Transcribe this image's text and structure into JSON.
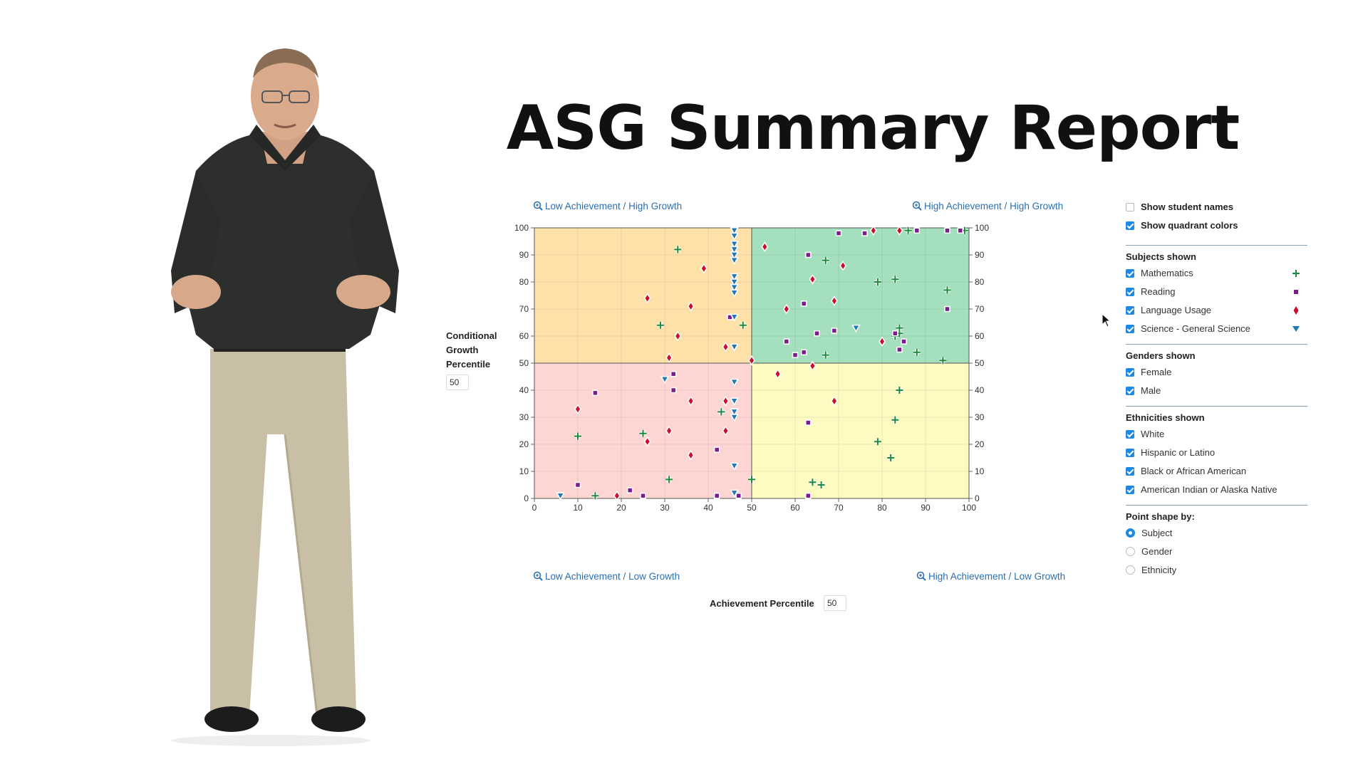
{
  "title": "ASG Summary Report",
  "quadrant_links": {
    "top_left": "Low Achievement / High Growth",
    "top_right": "High Achievement / High Growth",
    "bottom_left": "Low Achievement / Low Growth",
    "bottom_right": "High Achievement / Low Growth"
  },
  "y_axis": {
    "label_line1": "Conditional",
    "label_line2": "Growth",
    "label_line3": "Percentile",
    "threshold": "50"
  },
  "x_axis": {
    "label": "Achievement Percentile",
    "threshold": "50"
  },
  "panel": {
    "show_names": {
      "label": "Show student names",
      "checked": false
    },
    "show_colors": {
      "label": "Show quadrant colors",
      "checked": true
    },
    "subjects": {
      "title": "Subjects shown",
      "items": [
        {
          "label": "Mathematics",
          "checked": true
        },
        {
          "label": "Reading",
          "checked": true
        },
        {
          "label": "Language Usage",
          "checked": true
        },
        {
          "label": "Science - General Science",
          "checked": true
        }
      ]
    },
    "genders": {
      "title": "Genders shown",
      "items": [
        {
          "label": "Female",
          "checked": true
        },
        {
          "label": "Male",
          "checked": true
        }
      ]
    },
    "ethnicities": {
      "title": "Ethnicities shown",
      "items": [
        {
          "label": "White",
          "checked": true
        },
        {
          "label": "Hispanic or Latino",
          "checked": true
        },
        {
          "label": "Black or African American",
          "checked": true
        },
        {
          "label": "American Indian or Alaska Native",
          "checked": true
        }
      ]
    },
    "point_shape": {
      "title": "Point shape by:",
      "options": [
        {
          "label": "Subject",
          "selected": true
        },
        {
          "label": "Gender",
          "selected": false
        },
        {
          "label": "Ethnicity",
          "selected": false
        }
      ]
    }
  },
  "colors": {
    "quadrant_top_left": "#fde1a8",
    "quadrant_top_right": "#a4e0bd",
    "quadrant_bottom_left": "#fdd5d3",
    "quadrant_bottom_right": "#fdfbc2",
    "mathematics": "#1e8a3e",
    "reading": "#7b1c8c",
    "language_usage": "#c8102e",
    "science": "#1f78b4",
    "link": "#2a6fb0"
  },
  "icons": {
    "zoom": "magnifier-plus-icon",
    "mathematics": "plus-marker",
    "reading": "square-marker",
    "language_usage": "diamond-marker",
    "science": "triangle-down-marker"
  },
  "chart_data": {
    "type": "scatter",
    "xlim": [
      0,
      100
    ],
    "ylim": [
      0,
      100
    ],
    "x_ticks": [
      0,
      10,
      20,
      30,
      40,
      50,
      60,
      70,
      80,
      90,
      100
    ],
    "y_ticks": [
      0,
      10,
      20,
      30,
      40,
      50,
      60,
      70,
      80,
      90,
      100
    ],
    "grid": true,
    "threshold_x": 50,
    "threshold_y": 50,
    "series": [
      {
        "name": "Mathematics",
        "marker": "plus",
        "points": [
          [
            33,
            92
          ],
          [
            29,
            64
          ],
          [
            48,
            64
          ],
          [
            10,
            23
          ],
          [
            25,
            24
          ],
          [
            14,
            1
          ],
          [
            31,
            7
          ],
          [
            43,
            32
          ],
          [
            50,
            7
          ],
          [
            67,
            88
          ],
          [
            79,
            80
          ],
          [
            83,
            81
          ],
          [
            95,
            77
          ],
          [
            84,
            63
          ],
          [
            84,
            61
          ],
          [
            83,
            60
          ],
          [
            67,
            53
          ],
          [
            88,
            54
          ],
          [
            94,
            51
          ],
          [
            86,
            99
          ],
          [
            99,
            99
          ],
          [
            84,
            40
          ],
          [
            83,
            29
          ],
          [
            79,
            21
          ],
          [
            82,
            15
          ],
          [
            64,
            6
          ],
          [
            66,
            5
          ]
        ]
      },
      {
        "name": "Reading",
        "marker": "square",
        "points": [
          [
            45,
            67
          ],
          [
            14,
            39
          ],
          [
            32,
            46
          ],
          [
            32,
            40
          ],
          [
            10,
            5
          ],
          [
            22,
            3
          ],
          [
            25,
            1
          ],
          [
            42,
            18
          ],
          [
            42,
            1
          ],
          [
            47,
            1
          ],
          [
            63,
            90
          ],
          [
            62,
            72
          ],
          [
            58,
            58
          ],
          [
            70,
            98
          ],
          [
            76,
            98
          ],
          [
            88,
            99
          ],
          [
            95,
            99
          ],
          [
            98,
            99
          ],
          [
            95,
            70
          ],
          [
            65,
            61
          ],
          [
            69,
            62
          ],
          [
            83,
            61
          ],
          [
            85,
            58
          ],
          [
            84,
            55
          ],
          [
            60,
            53
          ],
          [
            62,
            54
          ],
          [
            63,
            28
          ],
          [
            63,
            1
          ]
        ]
      },
      {
        "name": "Language Usage",
        "marker": "diamond",
        "points": [
          [
            39,
            85
          ],
          [
            26,
            74
          ],
          [
            36,
            71
          ],
          [
            33,
            60
          ],
          [
            31,
            52
          ],
          [
            44,
            56
          ],
          [
            50,
            51
          ],
          [
            10,
            33
          ],
          [
            36,
            36
          ],
          [
            44,
            36
          ],
          [
            26,
            21
          ],
          [
            31,
            25
          ],
          [
            44,
            25
          ],
          [
            36,
            16
          ],
          [
            19,
            1
          ],
          [
            53,
            93
          ],
          [
            71,
            86
          ],
          [
            64,
            81
          ],
          [
            69,
            73
          ],
          [
            58,
            70
          ],
          [
            80,
            58
          ],
          [
            78,
            99
          ],
          [
            84,
            99
          ],
          [
            56,
            46
          ],
          [
            64,
            49
          ],
          [
            69,
            36
          ]
        ]
      },
      {
        "name": "Science - General Science",
        "marker": "triangle-down",
        "points": [
          [
            46,
            99
          ],
          [
            46,
            97
          ],
          [
            46,
            94
          ],
          [
            46,
            92
          ],
          [
            46,
            90
          ],
          [
            46,
            88
          ],
          [
            46,
            82
          ],
          [
            46,
            80
          ],
          [
            46,
            78
          ],
          [
            46,
            76
          ],
          [
            46,
            67
          ],
          [
            46,
            56
          ],
          [
            74,
            63
          ],
          [
            30,
            44
          ],
          [
            46,
            43
          ],
          [
            46,
            36
          ],
          [
            46,
            32
          ],
          [
            46,
            30
          ],
          [
            46,
            12
          ],
          [
            46,
            2
          ],
          [
            6,
            1
          ]
        ]
      }
    ]
  }
}
